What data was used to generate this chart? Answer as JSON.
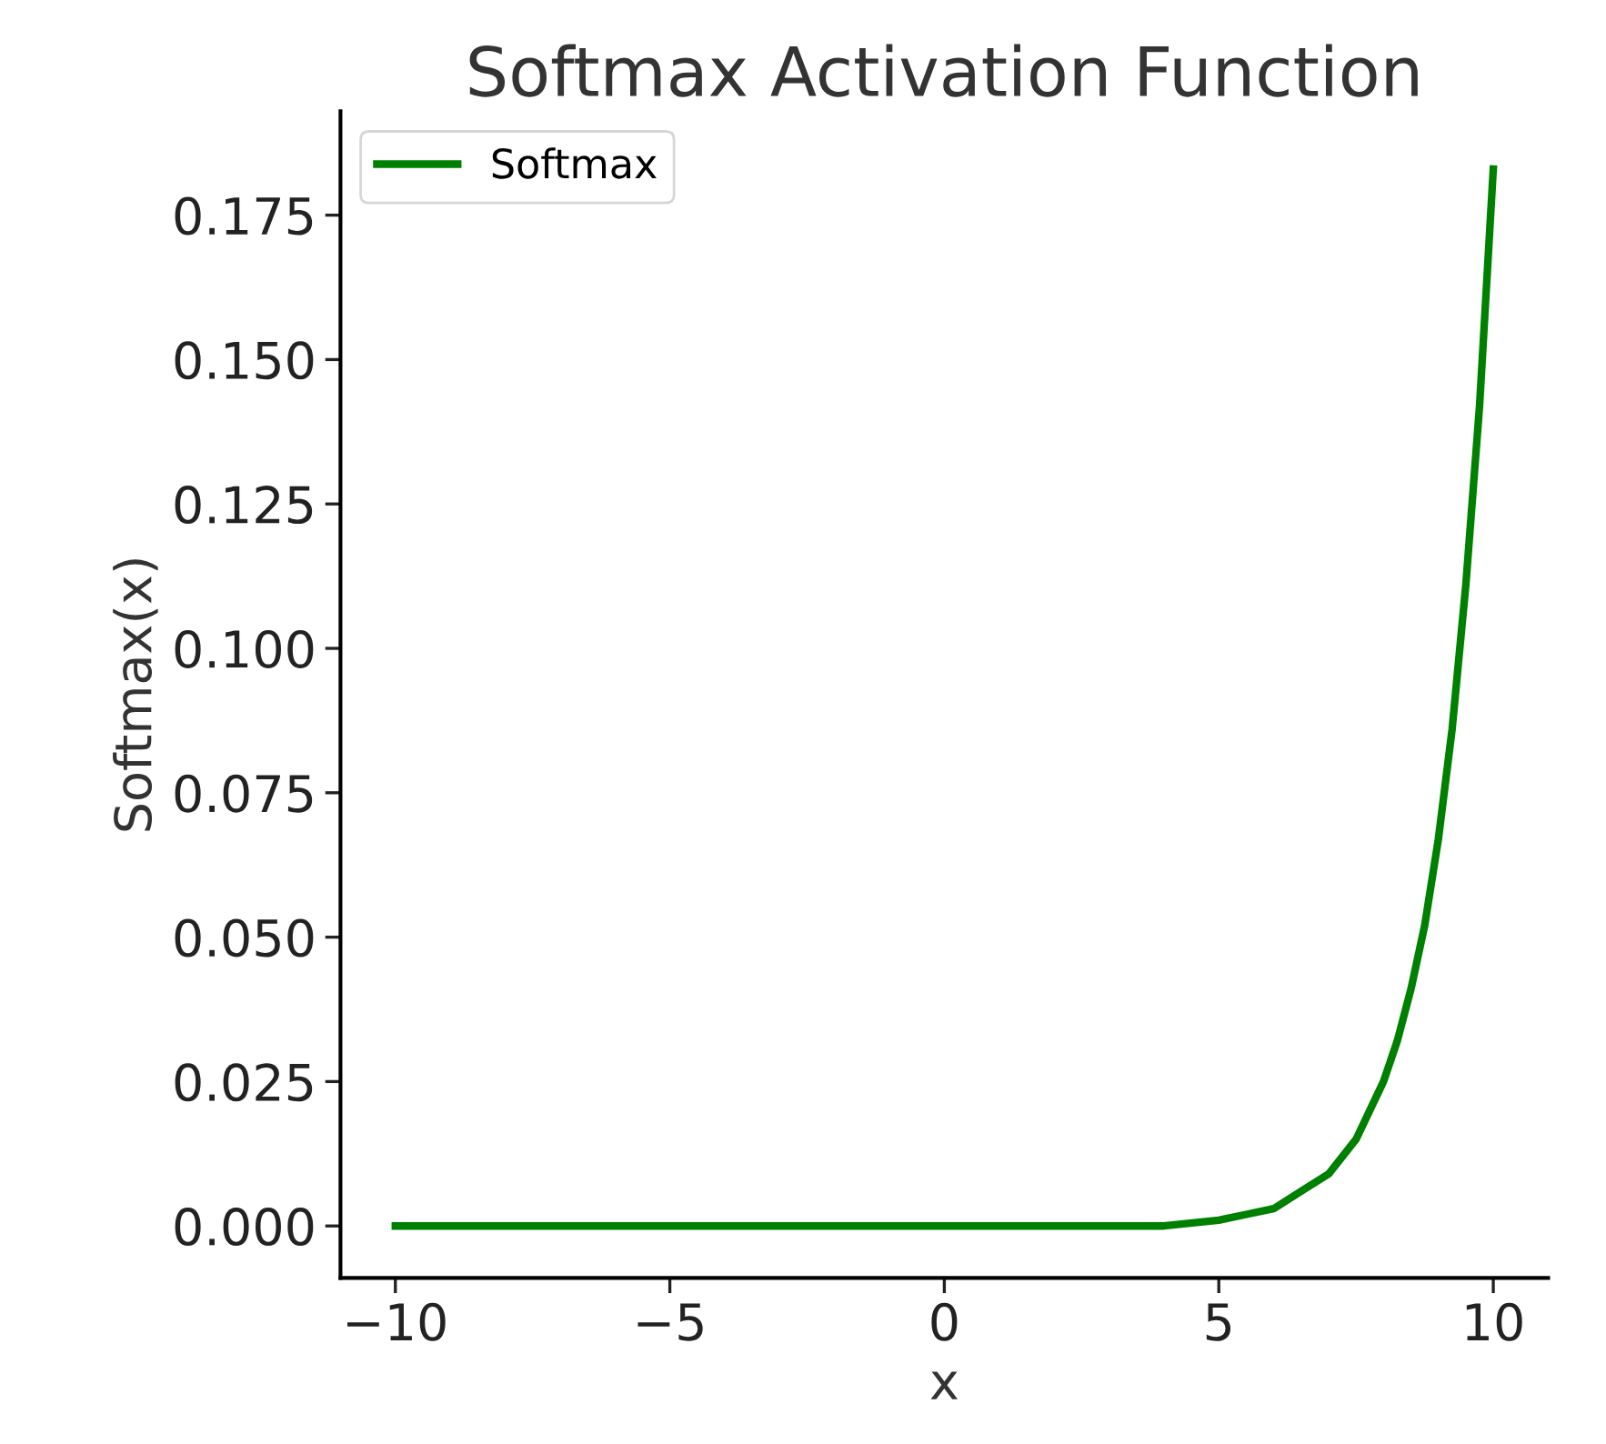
{
  "chart_data": {
    "type": "line",
    "title": "Softmax Activation Function",
    "xlabel": "x",
    "ylabel": "Softmax(x)",
    "x": [
      -10,
      -5,
      0,
      2,
      3,
      4,
      5,
      5.5,
      6,
      6.5,
      7,
      7.5,
      8,
      8.25,
      8.5,
      8.75,
      9,
      9.25,
      9.5,
      9.75,
      10
    ],
    "series": [
      {
        "name": "Softmax",
        "color": "#008000",
        "values": [
          0.0,
          0.0,
          0.0,
          0.0,
          0.0,
          0.0,
          0.001,
          0.002,
          0.003,
          0.006,
          0.009,
          0.015,
          0.025,
          0.032,
          0.041,
          0.052,
          0.067,
          0.086,
          0.111,
          0.142,
          0.183
        ]
      }
    ],
    "xlim": [
      -11,
      11
    ],
    "ylim": [
      -0.009,
      0.193
    ],
    "xticks": [
      {
        "value": -10,
        "label": "−10"
      },
      {
        "value": -5,
        "label": "−5"
      },
      0,
      5,
      10
    ],
    "yticks": [
      {
        "value": 0,
        "label": "0.000"
      },
      {
        "value": 0.025,
        "label": "0.025"
      },
      {
        "value": 0.05,
        "label": "0.050"
      },
      {
        "value": 0.075,
        "label": "0.075"
      },
      {
        "value": 0.1,
        "label": "0.100"
      },
      {
        "value": 0.125,
        "label": "0.125"
      },
      {
        "value": 0.15,
        "label": "0.150"
      },
      {
        "value": 0.175,
        "label": "0.175"
      }
    ],
    "legend": "top left",
    "grid": false,
    "line_style": "solid",
    "marker": "none"
  }
}
